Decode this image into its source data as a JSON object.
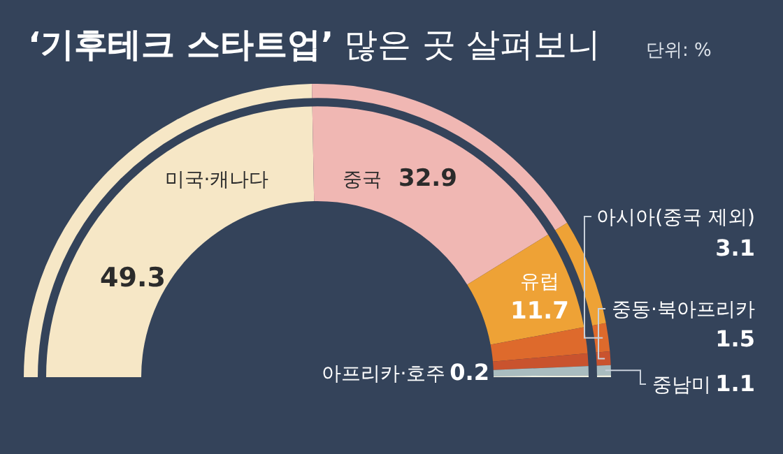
{
  "chart_data": {
    "type": "donut",
    "title": "**‘기후테크 스타트업’** 많은 곳 살펴보니",
    "subtitle": "단위: %",
    "categories": [
      "미국·캐나다",
      "중국",
      "유럽",
      "아시아(중국 제외)",
      "중동·북아프리카",
      "중남미",
      "아프리카·호주"
    ],
    "values": [
      49.3,
      32.9,
      11.7,
      3.1,
      1.5,
      1.1,
      0.2
    ],
    "colors": [
      "#f6e7c6",
      "#f0b7b3",
      "#eea236",
      "#de6a2c",
      "#c9532e",
      "#a9bcbf",
      "#eef0e2"
    ],
    "data_labels": true
  }
}
